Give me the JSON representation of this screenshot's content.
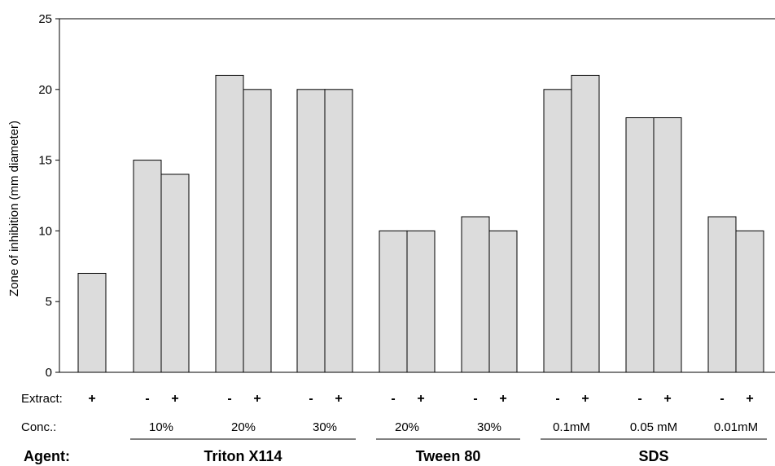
{
  "chart_data": {
    "type": "bar",
    "ylabel": "Zone of inhibition (mm diameter)",
    "ylim": [
      0,
      25
    ],
    "yticks": [
      0,
      5,
      10,
      15,
      20,
      25
    ],
    "grid": false,
    "bar_color": "#dcdcdc",
    "row_labels": {
      "extract": "Extract:",
      "conc": "Conc.:",
      "agent": "Agent:"
    },
    "groups": [
      {
        "conc": "",
        "bars": [
          {
            "extract": "+",
            "value": 7
          }
        ]
      },
      {
        "conc": "10%",
        "bars": [
          {
            "extract": "-",
            "value": 15
          },
          {
            "extract": "+",
            "value": 14
          }
        ]
      },
      {
        "conc": "20%",
        "bars": [
          {
            "extract": "-",
            "value": 21
          },
          {
            "extract": "+",
            "value": 20
          }
        ]
      },
      {
        "conc": "30%",
        "bars": [
          {
            "extract": "-",
            "value": 20
          },
          {
            "extract": "+",
            "value": 20
          }
        ]
      },
      {
        "conc": "20%",
        "bars": [
          {
            "extract": "-",
            "value": 10
          },
          {
            "extract": "+",
            "value": 10
          }
        ]
      },
      {
        "conc": "30%",
        "bars": [
          {
            "extract": "-",
            "value": 11
          },
          {
            "extract": "+",
            "value": 10
          }
        ]
      },
      {
        "conc": "0.1mM",
        "bars": [
          {
            "extract": "-",
            "value": 20
          },
          {
            "extract": "+",
            "value": 21
          }
        ]
      },
      {
        "conc": "0.05 mM",
        "bars": [
          {
            "extract": "-",
            "value": 18
          },
          {
            "extract": "+",
            "value": 18
          }
        ]
      },
      {
        "conc": "0.01mM",
        "bars": [
          {
            "extract": "-",
            "value": 11
          },
          {
            "extract": "+",
            "value": 10
          }
        ]
      }
    ],
    "agents": [
      {
        "name": "Triton X114",
        "groups": [
          1,
          3
        ]
      },
      {
        "name": "Tween 80",
        "groups": [
          4,
          5
        ]
      },
      {
        "name": "SDS",
        "groups": [
          6,
          8
        ]
      }
    ]
  }
}
